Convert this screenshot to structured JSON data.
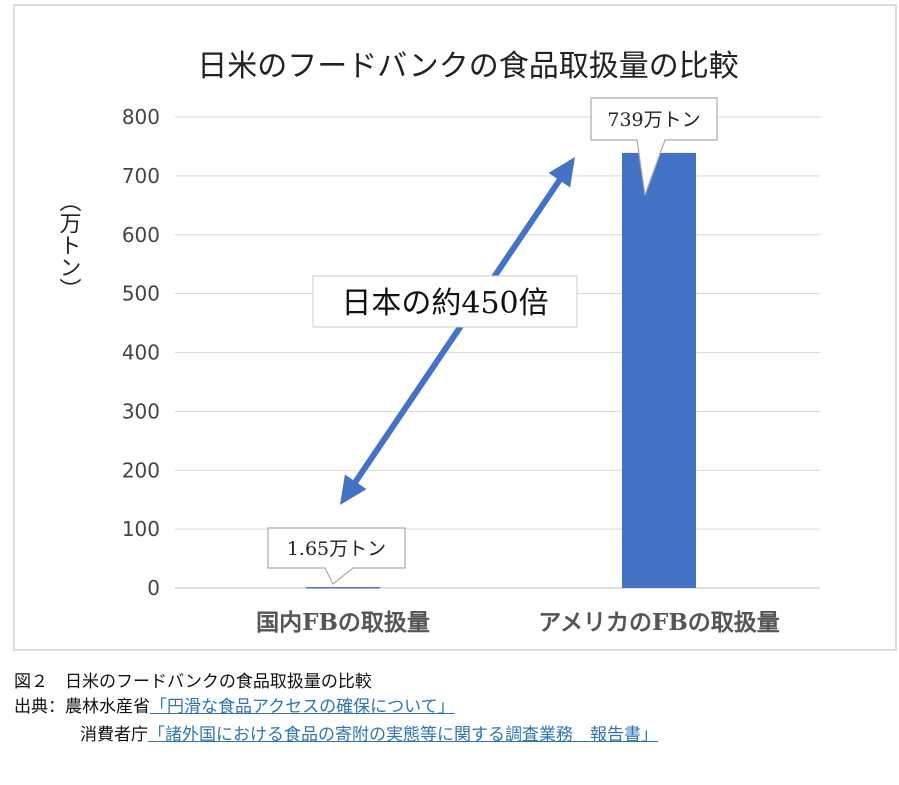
{
  "chart_data": {
    "type": "bar",
    "title": "日米のフードバンクの食品取扱量の比較",
    "ylabel": "（万トン）",
    "categories": [
      "国内FBの取扱量",
      "アメリカのFBの取扱量"
    ],
    "values": [
      1.65,
      739
    ],
    "data_labels": [
      "1.65万トン",
      "739万トン"
    ],
    "ylim": [
      0,
      800
    ],
    "yticks": [
      0,
      100,
      200,
      300,
      400,
      500,
      600,
      700,
      800
    ],
    "grid": true,
    "annotation": "日本の約450倍",
    "colors": {
      "bar": "#4472c4",
      "arrow": "#4472c4",
      "grid": "#d9d9d9"
    }
  },
  "caption": {
    "figure": "図２　日米のフードバンクの食品取扱量の比較",
    "source_label": "出典：",
    "source1_org": "農林水産省",
    "source1_link": "「円滑な食品アクセスの確保について」",
    "source2_org": "消費者庁",
    "source2_link": "「諸外国における食品の寄附の実態等に関する調査業務　報告書」"
  }
}
